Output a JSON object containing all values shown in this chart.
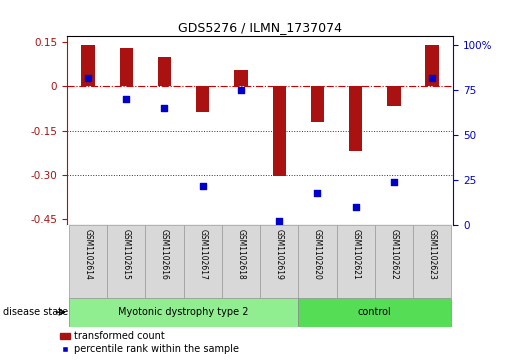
{
  "title": "GDS5276 / ILMN_1737074",
  "samples": [
    "GSM1102614",
    "GSM1102615",
    "GSM1102616",
    "GSM1102617",
    "GSM1102618",
    "GSM1102619",
    "GSM1102620",
    "GSM1102621",
    "GSM1102622",
    "GSM1102623"
  ],
  "bar_values": [
    0.14,
    0.13,
    0.1,
    -0.085,
    0.055,
    -0.305,
    -0.12,
    -0.22,
    -0.065,
    0.14
  ],
  "dot_values": [
    82,
    70,
    65,
    22,
    75,
    2,
    18,
    10,
    24,
    82
  ],
  "ylim_left": [
    -0.47,
    0.17
  ],
  "ylim_right": [
    0,
    105
  ],
  "yticks_left": [
    0.15,
    0.0,
    -0.15,
    -0.3,
    -0.45
  ],
  "ytick_labels_left": [
    "0.15",
    "0",
    "-0.15",
    "-0.30",
    "-0.45"
  ],
  "yticks_right": [
    100,
    75,
    50,
    25,
    0
  ],
  "ytick_labels_right": [
    "100%",
    "75",
    "50",
    "25",
    "0"
  ],
  "bar_color": "#aa1111",
  "dot_color": "#0000cc",
  "hline_color": "#cc0000",
  "grid_color": "#333333",
  "disease_groups": [
    {
      "label": "Myotonic dystrophy type 2",
      "start": 0,
      "end": 6,
      "color": "#90ee90"
    },
    {
      "label": "control",
      "start": 6,
      "end": 10,
      "color": "#55dd55"
    }
  ],
  "disease_state_label": "disease state",
  "legend_bar_label": "transformed count",
  "legend_dot_label": "percentile rank within the sample",
  "sample_bg_color": "#d8d8d8",
  "bar_width": 0.35
}
